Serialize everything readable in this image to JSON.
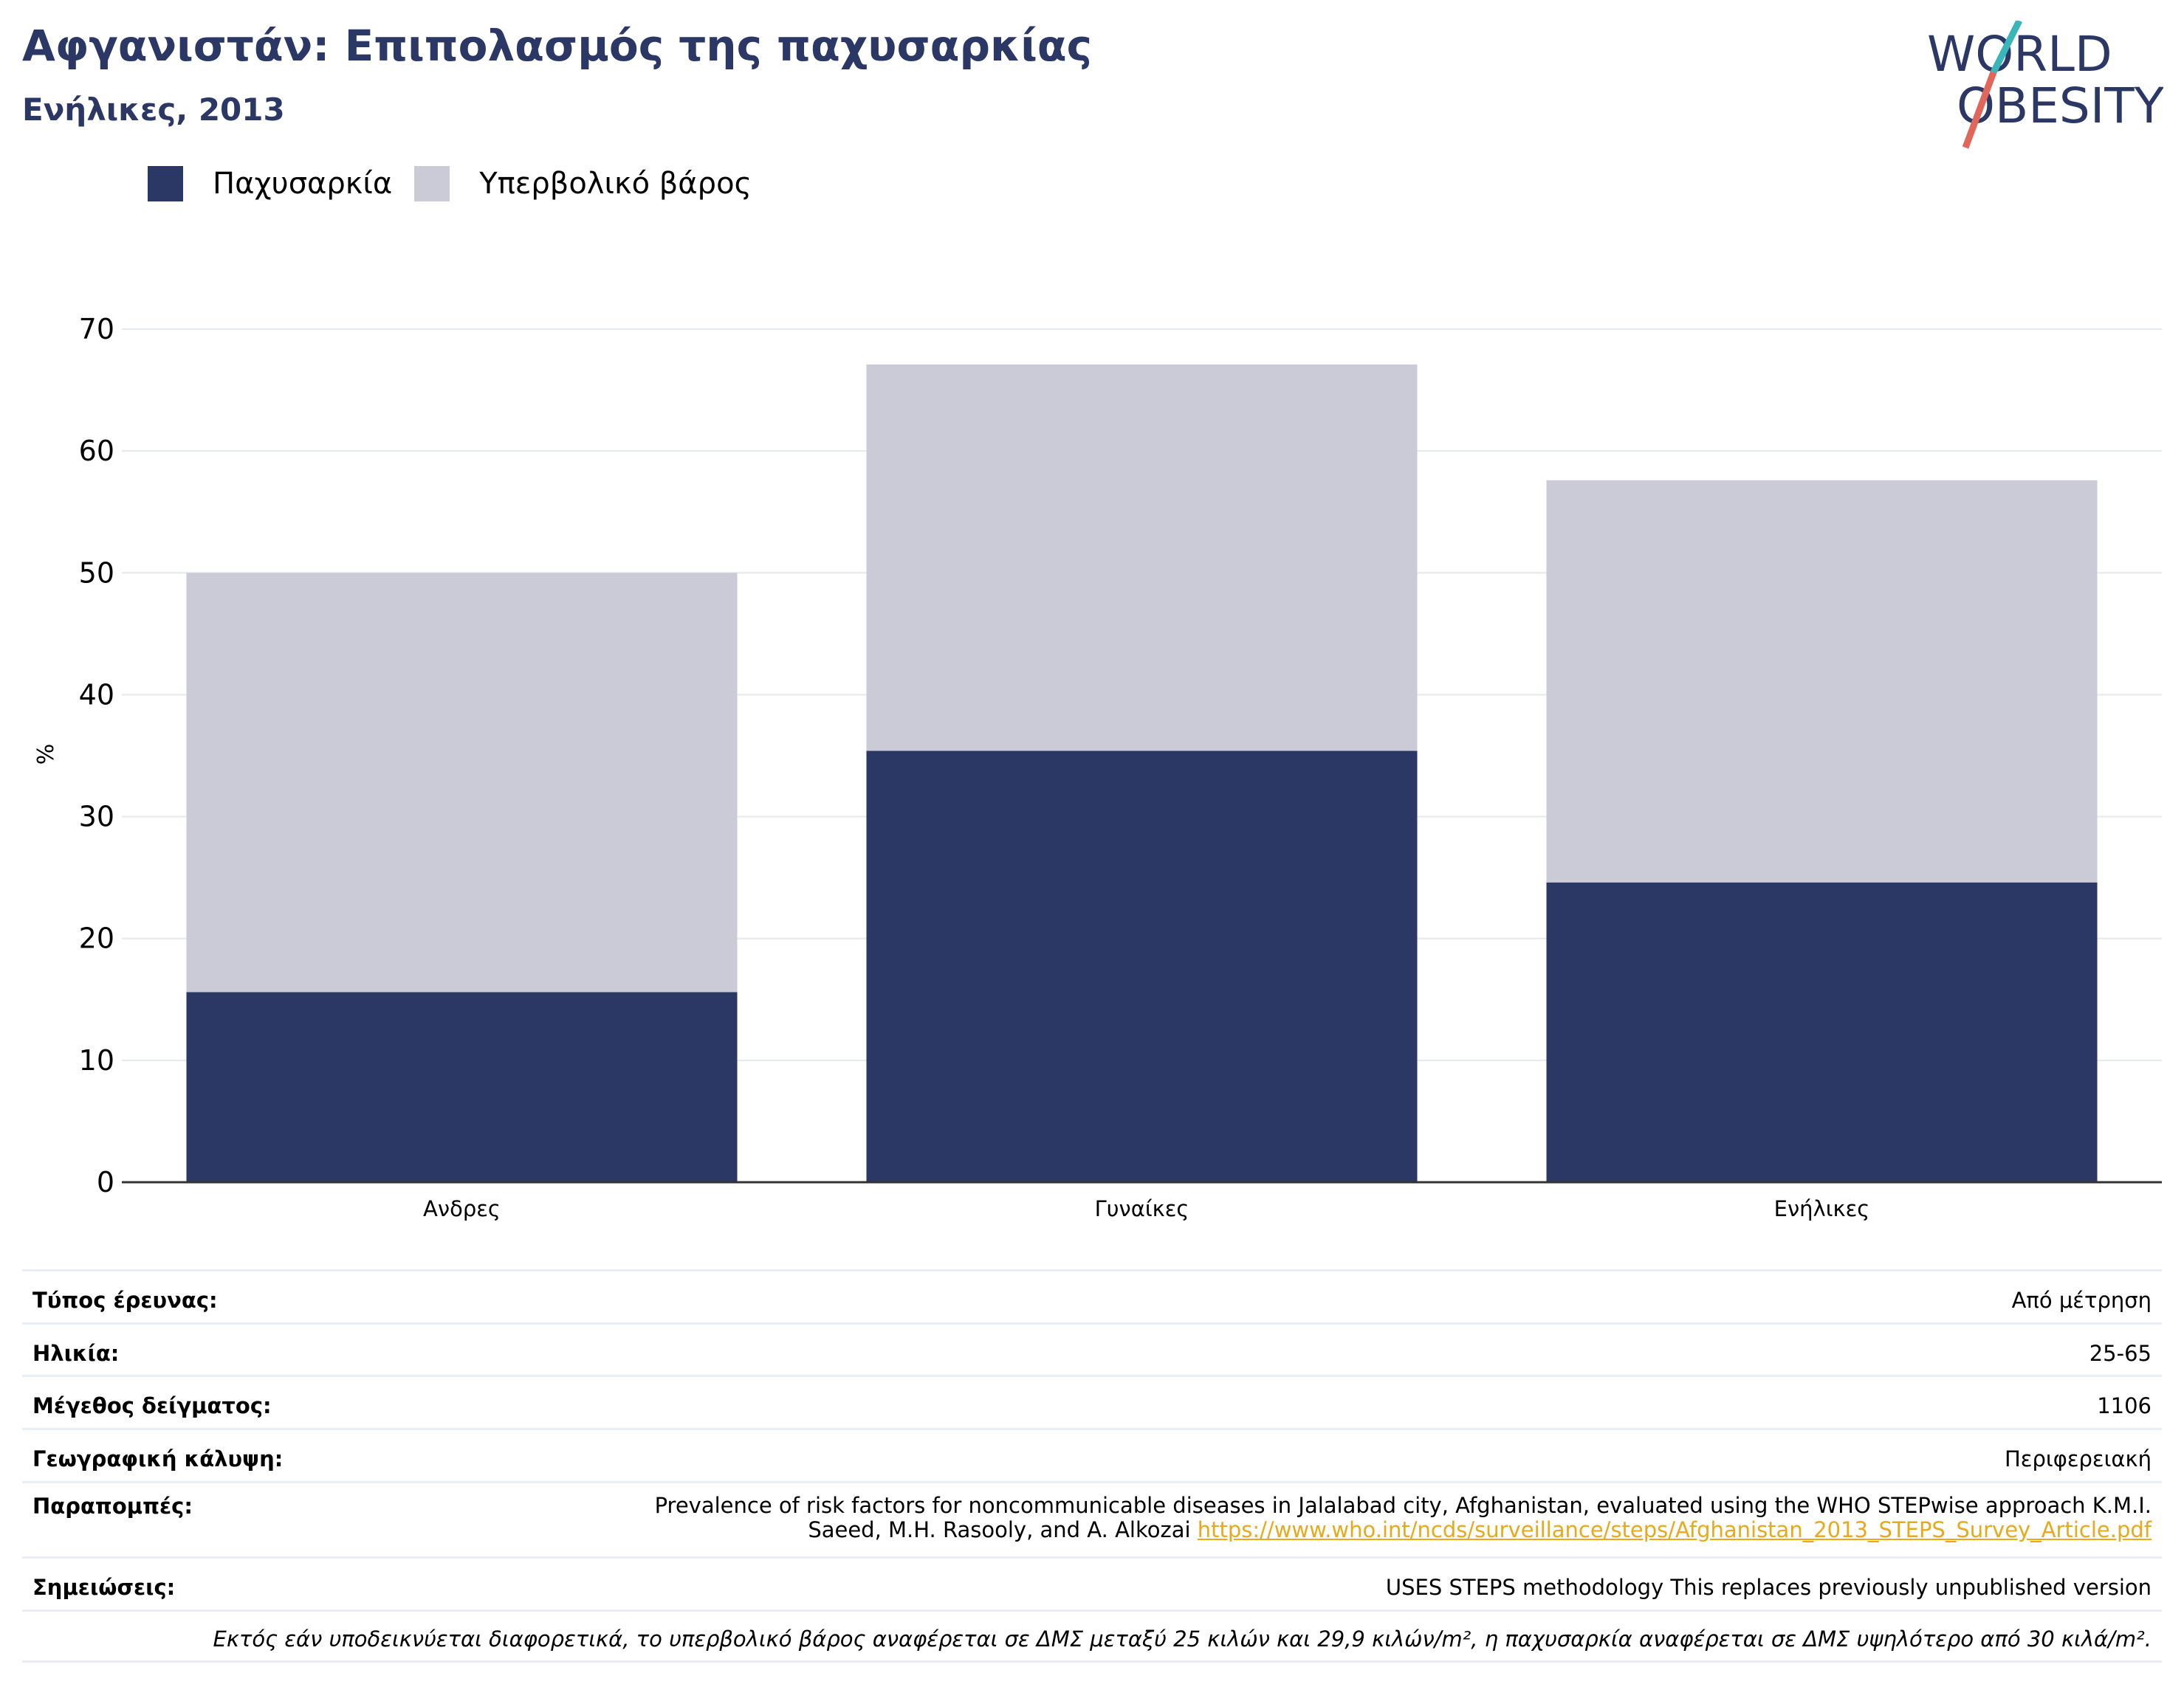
{
  "header": {
    "title": "Αφγανιστάν: Επιπολασμός της παχυσαρκίας",
    "subtitle": "Ενήλικες, 2013"
  },
  "logo": {
    "line1": "WORLD",
    "line2": "OBESITY",
    "colors": {
      "text": "#2b3764",
      "slash_teal": "#3ab5b8",
      "slash_red": "#e0665a"
    }
  },
  "legend": {
    "items": [
      {
        "label": "Παχυσαρκία",
        "color": "#2b3764"
      },
      {
        "label": "Υπερβολικό βάρος",
        "color": "#cacbd6"
      }
    ]
  },
  "chart_data": {
    "type": "bar",
    "stacked": true,
    "categories": [
      "Ανδρες",
      "Γυναίκες",
      "Ενήλικες"
    ],
    "series": [
      {
        "name": "Παχυσαρκία",
        "values": [
          15.6,
          35.4,
          24.6
        ],
        "color": "#2b3764"
      },
      {
        "name": "Υπερβολικό βάρος",
        "values": [
          34.4,
          31.7,
          33.0
        ],
        "color": "#cacbd6"
      }
    ],
    "ylabel": "%",
    "ylim": [
      0,
      70
    ],
    "yticks": [
      0,
      10,
      20,
      30,
      40,
      50,
      60,
      70
    ],
    "grid": true
  },
  "meta": {
    "rows": [
      {
        "key": "Τύπος έρευνας:",
        "value": "Από μέτρηση"
      },
      {
        "key": "Ηλικία:",
        "value": "25-65"
      },
      {
        "key": "Μέγεθος δείγματος:",
        "value": "1106"
      },
      {
        "key": "Γεωγραφική κάλυψη:",
        "value": "Περιφερειακή"
      }
    ],
    "references_key": "Παραπομπές:",
    "references_line1": "Prevalence of risk factors for noncommunicable diseases in Jalalabad city, Afghanistan, evaluated using the WHO STEPwise approach K.M.I.",
    "references_line2": "Saeed, M.H. Rasooly, and A. Alkozai",
    "references_link": "https://www.who.int/ncds/surveillance/steps/Afghanistan_2013_STEPS_Survey_Article.pdf",
    "notes_key": "Σημειώσεις:",
    "notes_value": "USES STEPS methodology This replaces previously unpublished version",
    "footnote": "Εκτός εάν υποδεικνύεται διαφορετικά, το υπερβολικό βάρος αναφέρεται σε ΔΜΣ μεταξύ 25 κιλών και 29,9 κιλών/m², η παχυσαρκία αναφέρεται σε ΔΜΣ υψηλότερο από 30 κιλά/m²."
  }
}
